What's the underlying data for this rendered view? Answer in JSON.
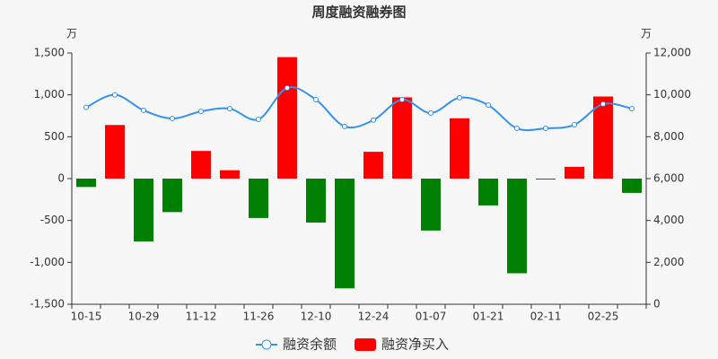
{
  "chart_data": {
    "type": "bar_line",
    "title": "周度融资融券图",
    "y_unit": "万",
    "y2_unit": "万",
    "categories": [
      "10-15",
      null,
      "10-29",
      null,
      "11-12",
      null,
      "11-26",
      null,
      "12-10",
      null,
      "12-24",
      null,
      "01-07",
      null,
      "01-21",
      null,
      "02-11",
      null,
      "02-25",
      null
    ],
    "series": [
      {
        "name": "融资余额",
        "type": "line",
        "axis": "y2",
        "color": "#3392ee",
        "values": [
          9400,
          10000,
          9260,
          8870,
          9210,
          9340,
          8830,
          10330,
          9770,
          8490,
          8790,
          9770,
          9130,
          9860,
          9510,
          8400,
          8400,
          8570,
          9560,
          9340
        ]
      },
      {
        "name": "融资净买入",
        "type": "bar",
        "axis": "y",
        "color": "#ff0000",
        "negative_color": "#008000",
        "values": [
          -100,
          640,
          -750,
          -400,
          330,
          100,
          -470,
          1450,
          -525,
          -1310,
          320,
          970,
          -620,
          720,
          -320,
          -1130,
          -5,
          140,
          980,
          -170
        ]
      }
    ],
    "ylim": [
      -1500,
      1500
    ],
    "yticks": [
      {
        "value": -1500,
        "label": "-1,500"
      },
      {
        "value": -1000,
        "label": "-1,000"
      },
      -500,
      0,
      500,
      {
        "value": 1000,
        "label": "1,000"
      },
      {
        "value": 1500,
        "label": "1,500"
      }
    ],
    "y2lim": [
      0,
      12000
    ],
    "y2ticks": [
      0,
      {
        "value": 2000,
        "label": "2,000"
      },
      {
        "value": 4000,
        "label": "4,000"
      },
      {
        "value": 6000,
        "label": "6,000"
      },
      {
        "value": 8000,
        "label": "8,000"
      },
      {
        "value": 10000,
        "label": "10,000"
      },
      {
        "value": 12000,
        "label": "12,000"
      }
    ],
    "legend": "bottom"
  }
}
